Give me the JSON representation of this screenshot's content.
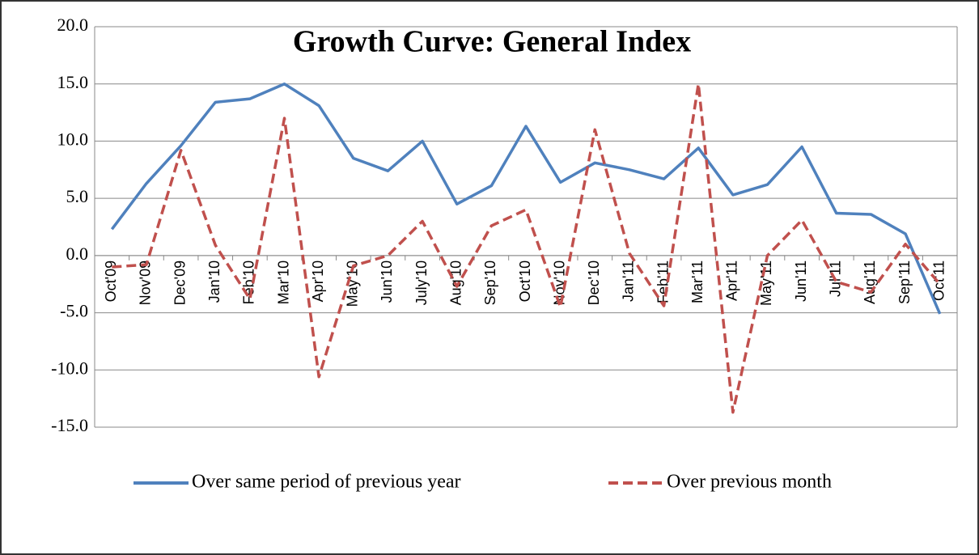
{
  "chart_data": {
    "type": "line",
    "title": "Growth Curve: General Index",
    "categories": [
      "Oct'09",
      "Nov'09",
      "Dec'09",
      "Jan'10",
      "Feb'10",
      "Mar'10",
      "Apr'10",
      "May'10",
      "Jun'10",
      "July'10",
      "Aug'10",
      "Sep'10",
      "Oct'10",
      "Nov'10",
      "Dec'10",
      "Jan'11",
      "Feb'11",
      "Mar'11",
      "Apr'11",
      "May'11",
      "Jun'11",
      "Jul'11",
      "Aug'11",
      "Sep'11",
      "Oct'11"
    ],
    "series": [
      {
        "name": "Over same period of previous year",
        "color": "#4f81bd",
        "dash": false,
        "values": [
          2.3,
          6.3,
          9.6,
          13.4,
          13.7,
          15.0,
          13.1,
          8.5,
          7.4,
          10.0,
          4.5,
          6.1,
          11.3,
          6.4,
          8.1,
          7.5,
          6.7,
          9.4,
          5.3,
          6.2,
          9.5,
          3.7,
          3.6,
          1.9,
          -5.1
        ]
      },
      {
        "name": "Over previous month",
        "color": "#c0504d",
        "dash": true,
        "values": [
          -1.0,
          -0.8,
          9.2,
          0.9,
          -3.8,
          12.0,
          -10.6,
          -0.9,
          0.0,
          3.0,
          -2.7,
          2.6,
          4.0,
          -4.5,
          11.0,
          0.2,
          -4.4,
          15.0,
          -13.7,
          0.0,
          3.1,
          -2.3,
          -3.2,
          1.0,
          -2.5
        ]
      }
    ],
    "ylim": [
      -15,
      20
    ],
    "yticks": [
      {
        "value": -15,
        "label": "-15.0"
      },
      {
        "value": -10,
        "label": "-10.0"
      },
      {
        "value": -5,
        "label": "-5.0"
      },
      {
        "value": 0,
        "label": "0.0"
      },
      {
        "value": 5,
        "label": "5.0"
      },
      {
        "value": 10,
        "label": "10.0"
      },
      {
        "value": 15,
        "label": "15.0"
      },
      {
        "value": 20,
        "label": "20.0"
      }
    ],
    "grid": true,
    "legend": "bottom"
  }
}
